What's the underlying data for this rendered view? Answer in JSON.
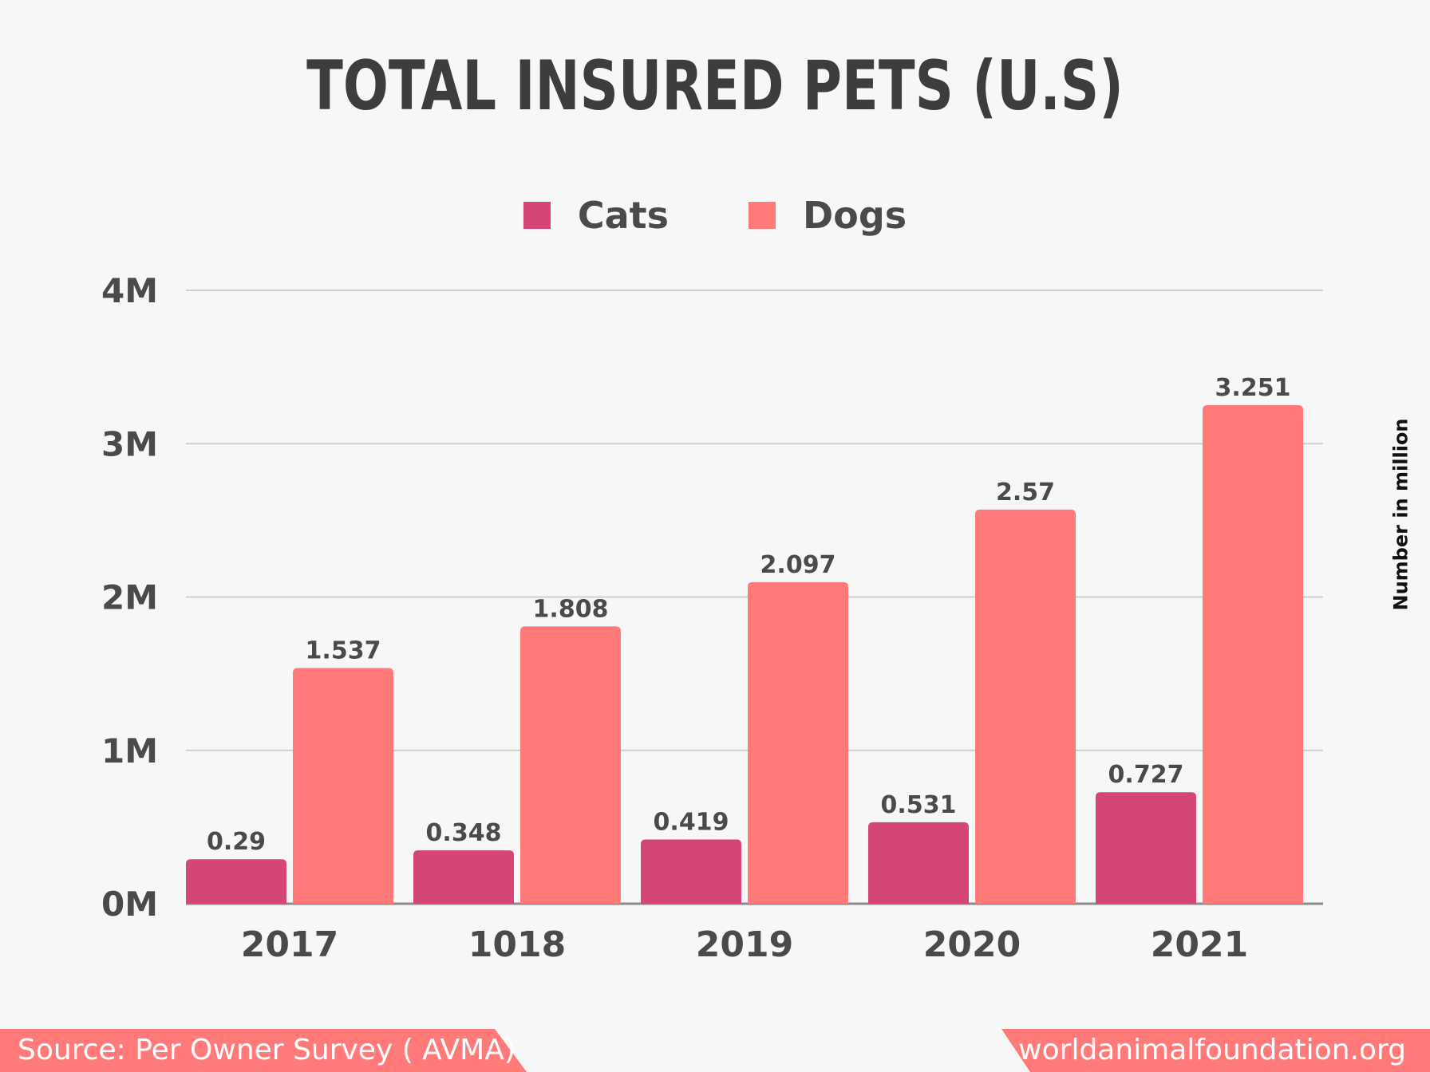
{
  "chart_data": {
    "type": "bar",
    "title": "TOTAL INSURED PETS (U.S)",
    "categories": [
      "2017",
      "1018",
      "2019",
      "2020",
      "2021"
    ],
    "series": [
      {
        "name": "Cats",
        "color": "#d44578",
        "values": [
          0.29,
          0.348,
          0.419,
          0.531,
          0.727
        ]
      },
      {
        "name": "Dogs",
        "color": "#ff7a78",
        "values": [
          1.537,
          1.808,
          2.097,
          2.57,
          3.251
        ]
      }
    ],
    "value_labels": {
      "Cats": [
        "0.29",
        "0.348",
        "0.419",
        "0.531",
        "0.727"
      ],
      "Dogs": [
        "1.537",
        "1.808",
        "2.097",
        "2.57",
        "3.251"
      ]
    },
    "yticks": [
      0,
      1,
      2,
      3,
      4
    ],
    "ytick_labels": [
      "0M",
      "1M",
      "2M",
      "3M",
      "4M"
    ],
    "ylim": [
      0,
      4
    ],
    "ylabel": "Number in million",
    "xlabel": "",
    "grid": true,
    "legend_position": "top-center"
  },
  "footer": {
    "source": "Source: Per Owner Survey ( AVMA)",
    "website": "worldanimalfoundation.org"
  }
}
